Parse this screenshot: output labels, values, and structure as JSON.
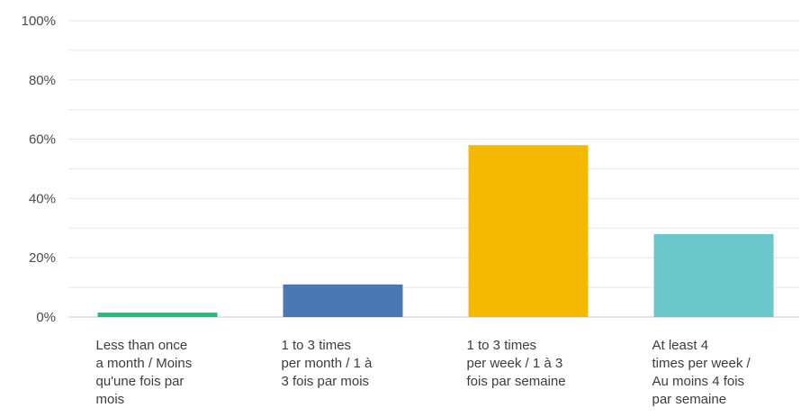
{
  "chart_data": {
    "type": "bar",
    "categories": [
      "Less than once a month / Moins qu'une fois par mois",
      "1 to 3 times per month / 1 à 3 fois par mois",
      "1 to 3 times per week / 1 à 3 fois par semaine",
      "At least 4 times per week / Au moins 4 fois par semaine"
    ],
    "category_lines": [
      [
        "Less than once",
        "a month / Moins",
        "qu'une fois par",
        "mois"
      ],
      [
        "1 to 3 times",
        "per month / 1 à",
        "3 fois par mois"
      ],
      [
        "1 to 3 times",
        "per week / 1 à 3",
        "fois par semaine"
      ],
      [
        "At least 4",
        "times per week /",
        "Au moins 4 fois",
        "par semaine"
      ]
    ],
    "values": [
      1.5,
      11,
      58,
      28
    ],
    "colors": [
      "#1fbf7a",
      "#4a78b5",
      "#f5b800",
      "#6cc7cc"
    ],
    "ylim": [
      0,
      100
    ],
    "yticks": [
      "0%",
      "20%",
      "40%",
      "60%",
      "80%",
      "100%"
    ],
    "grid": true
  }
}
